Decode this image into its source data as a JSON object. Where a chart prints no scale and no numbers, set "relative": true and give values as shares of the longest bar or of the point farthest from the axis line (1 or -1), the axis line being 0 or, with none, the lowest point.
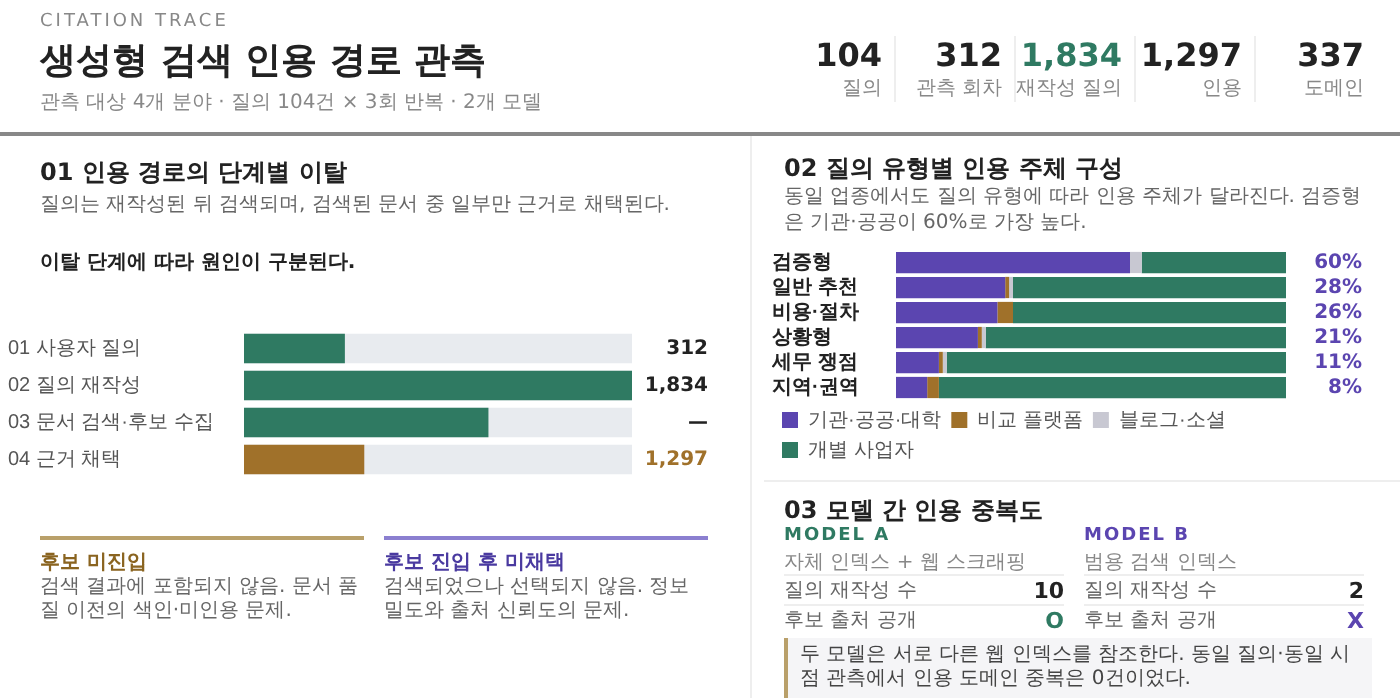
{
  "chart_data": [
    {
      "type": "other",
      "title": "생성형 검색 인용 경로 관측",
      "subtitle": "관측 대상 4개 분야 · 질의 104건 × 3회 반복 · 2개 모델",
      "annotations": [
        "CITATION TRACE"
      ],
      "categories": [
        "질의",
        "관측 회차",
        "재작성 질의",
        "인용",
        "도메인"
      ],
      "value_labels": [
        "104",
        "312",
        "1,834",
        "1,297",
        "337"
      ],
      "colors": [
        "#222222",
        "#222222",
        "#2f7a62",
        "#222222",
        "#222222"
      ]
    },
    {
      "type": "bar",
      "orientation": "horizontal",
      "relative": true,
      "title": "01 인용 경로의 단계별 이탈",
      "subtitle": "질의는 재작성된 뒤 검색되며, 검색된 문서 중 일부만 근거로 채택된다.",
      "categories": [
        "01 사용자 질의",
        "02 질의 재작성",
        "03 문서 검색·후보 수집",
        "04 근거 채택"
      ],
      "values": [
        0.26,
        1,
        0.63,
        0.31
      ],
      "colors": [
        "#2f7a62",
        "#2f7a62",
        "#2f7a62",
        "#a0712a"
      ],
      "annotations": [
        "이탈 단계에 따라 원인이 구분된다.",
        "후보 미진입",
        "검색 결과에 포함되지 않음. 문서 품질 이전의 색인·미인용 문제.",
        "후보 진입 후 미채택",
        "검색되었으나 선택되지 않음. 정보 밀도와 출처 신뢰도의 문제.",
        "312",
        "1,834",
        "—",
        "1,297"
      ],
      "legend": false
    },
    {
      "type": "bar",
      "orientation": "horizontal",
      "stacked": true,
      "xlim": [
        0,
        100
      ],
      "title": "02 질의 유형별 인용 주체 구성",
      "subtitle": "동일 업종에서도 질의 유형에 따라 인용 주체가 달라진다. 검증형은 기관·공공이 60%로 가장 높다.",
      "categories": [
        "검증형",
        "일반 추천",
        "비용·절차",
        "상황형",
        "세무 쟁점",
        "지역·권역"
      ],
      "legend": "bottom",
      "series": [
        {
          "name": "기관·공공·대학",
          "color": "#5b45b0",
          "values": [
            60,
            28,
            26,
            21,
            11,
            8
          ],
          "value_labels": [
            "60%",
            "28%",
            "26%",
            "21%",
            "11%",
            "8%"
          ]
        },
        {
          "name": "비교 플랫폼",
          "color": "#a0712a",
          "values": [
            0,
            1,
            4,
            1,
            1,
            3
          ]
        },
        {
          "name": "블로그·소셜",
          "color": "#c8c8d2",
          "values": [
            3,
            1,
            0,
            1,
            1,
            0
          ]
        },
        {
          "name": "개별 사업자",
          "color": "#2f7a62",
          "values": [
            37,
            70,
            70,
            77,
            87,
            89
          ]
        }
      ]
    },
    {
      "type": "other",
      "title": "03 모델 간 인용 중복도",
      "categories": [
        "질의 재작성 수",
        "후보 출처 공개"
      ],
      "series": [
        {
          "name": "MODEL A",
          "color": "#2f7a62",
          "values": [
            10,
            null
          ],
          "value_labels": [
            "10",
            "O"
          ]
        },
        {
          "name": "MODEL B",
          "color": "#5b45b0",
          "values": [
            2,
            null
          ],
          "value_labels": [
            "2",
            "X"
          ]
        }
      ],
      "annotations": [
        "자체 인덱스 + 웹 스크래핑",
        "범용 검색 인덱스",
        "두 모델은 서로 다른 웹 인덱스를 참조한다. 동일 질의·동일 시점 관측에서 인용 도메인 중복은 0건이었다."
      ]
    }
  ]
}
